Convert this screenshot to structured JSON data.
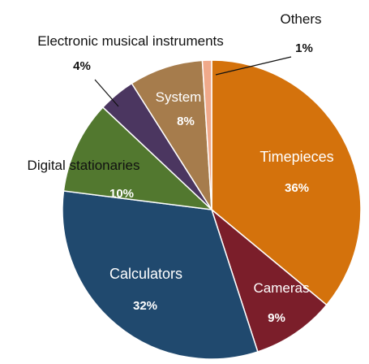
{
  "chart_data": {
    "type": "pie",
    "title": "",
    "slices": [
      {
        "label": "Timepieces",
        "value": 36,
        "pct_text": "36%",
        "color": "#d4720c"
      },
      {
        "label": "Cameras",
        "value": 9,
        "pct_text": "9%",
        "color": "#7b1e2a"
      },
      {
        "label": "Calculators",
        "value": 32,
        "pct_text": "32%",
        "color": "#20496e"
      },
      {
        "label": "Digital stationaries",
        "value": 10,
        "pct_text": "10%",
        "color": "#52782f"
      },
      {
        "label": "Electronic musical instruments",
        "value": 4,
        "pct_text": "4%",
        "color": "#4b3660"
      },
      {
        "label": "System",
        "value": 8,
        "pct_text": "8%",
        "color": "#a67c4c"
      },
      {
        "label": "Others",
        "value": 1,
        "pct_text": "1%",
        "color": "#f0a98a"
      }
    ],
    "start_angle_deg": 0,
    "direction": "clockwise"
  }
}
